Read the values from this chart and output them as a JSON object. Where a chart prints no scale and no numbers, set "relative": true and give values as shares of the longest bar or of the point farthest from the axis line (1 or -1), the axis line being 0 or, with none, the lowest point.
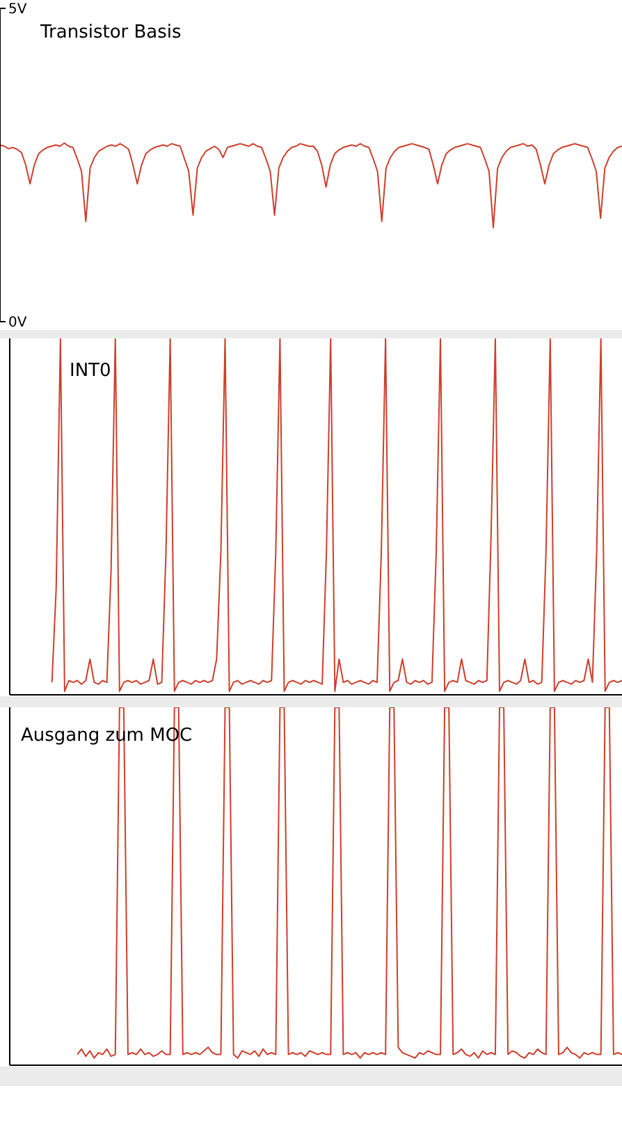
{
  "chart_data": [
    {
      "type": "line",
      "title": "Transistor Basis",
      "color": "#cc3f2b",
      "tick_labels": "y",
      "ylim": [
        0,
        5
      ],
      "yticks": [
        {
          "value": 0,
          "label": "0V"
        },
        {
          "value": 5,
          "label": "5V"
        }
      ],
      "categories": [
        null,
        null,
        null,
        null,
        null,
        null,
        null,
        null,
        null,
        null,
        null,
        null,
        null,
        null,
        null,
        null,
        null,
        null,
        null,
        null,
        null,
        null,
        null,
        null,
        null,
        null,
        null,
        null,
        null,
        null,
        null,
        null,
        null,
        null,
        null,
        null,
        null,
        null,
        null,
        null,
        null,
        null,
        null,
        null,
        null,
        null,
        null,
        null,
        null,
        null,
        null,
        null,
        null,
        null,
        null,
        null,
        null,
        null,
        null,
        null,
        null,
        null,
        null,
        null,
        null,
        null,
        null,
        null,
        null,
        null,
        null,
        null,
        null,
        null,
        null,
        null,
        null,
        null,
        null,
        null,
        null,
        null,
        null,
        null,
        null,
        null,
        null,
        null,
        null,
        null,
        null,
        null,
        null,
        null,
        null,
        null,
        null,
        null,
        null,
        null,
        null,
        null,
        null,
        null,
        null,
        null,
        null,
        null,
        null,
        null,
        null,
        null,
        null,
        null,
        null,
        null,
        null,
        null,
        null,
        null,
        null,
        null,
        null,
        null,
        null,
        null,
        null,
        null,
        null,
        null,
        null,
        null,
        null,
        null,
        null,
        null,
        null,
        null,
        null,
        null,
        null,
        null,
        null,
        null,
        null,
        null
      ],
      "values": [
        2.82,
        2.8,
        2.76,
        2.78,
        2.75,
        2.7,
        2.5,
        2.2,
        2.5,
        2.68,
        2.74,
        2.78,
        2.8,
        2.82,
        2.8,
        2.85,
        2.8,
        2.78,
        2.6,
        2.4,
        1.6,
        2.45,
        2.62,
        2.72,
        2.76,
        2.8,
        2.82,
        2.8,
        2.84,
        2.8,
        2.75,
        2.5,
        2.2,
        2.5,
        2.68,
        2.74,
        2.78,
        2.8,
        2.82,
        2.8,
        2.84,
        2.82,
        2.8,
        2.6,
        2.4,
        1.7,
        2.45,
        2.62,
        2.72,
        2.76,
        2.8,
        2.75,
        2.62,
        2.78,
        2.8,
        2.82,
        2.84,
        2.82,
        2.8,
        2.84,
        2.8,
        2.78,
        2.6,
        2.4,
        1.7,
        2.45,
        2.62,
        2.72,
        2.78,
        2.8,
        2.84,
        2.82,
        2.8,
        2.8,
        2.72,
        2.5,
        2.15,
        2.5,
        2.68,
        2.74,
        2.78,
        2.8,
        2.82,
        2.8,
        2.84,
        2.8,
        2.78,
        2.6,
        2.4,
        1.6,
        2.45,
        2.62,
        2.72,
        2.78,
        2.8,
        2.82,
        2.84,
        2.82,
        2.8,
        2.78,
        2.75,
        2.5,
        2.2,
        2.5,
        2.68,
        2.74,
        2.78,
        2.8,
        2.82,
        2.84,
        2.82,
        2.8,
        2.78,
        2.6,
        2.4,
        1.5,
        2.45,
        2.62,
        2.72,
        2.78,
        2.8,
        2.82,
        2.84,
        2.8,
        2.82,
        2.75,
        2.5,
        2.2,
        2.5,
        2.68,
        2.74,
        2.78,
        2.8,
        2.82,
        2.84,
        2.82,
        2.8,
        2.78,
        2.6,
        2.4,
        1.65,
        2.45,
        2.62,
        2.72,
        2.78,
        2.8
      ]
    },
    {
      "type": "line",
      "title": "INT0",
      "color": "#cc3f2b",
      "relative": true,
      "categories": [
        null,
        null,
        null,
        null,
        null,
        null,
        null,
        null,
        null,
        null,
        null,
        null,
        null,
        null,
        null,
        null,
        null,
        null,
        null,
        null,
        null,
        null,
        null,
        null,
        null,
        null,
        null,
        null,
        null,
        null,
        null,
        null,
        null,
        null,
        null,
        null,
        null,
        null,
        null,
        null,
        null,
        null,
        null,
        null,
        null,
        null,
        null,
        null,
        null,
        null,
        null,
        null,
        null,
        null,
        null,
        null,
        null,
        null,
        null,
        null,
        null,
        null,
        null,
        null,
        null,
        null,
        null,
        null,
        null,
        null,
        null,
        null,
        null,
        null,
        null,
        null,
        null,
        null,
        null,
        null,
        null,
        null,
        null,
        null,
        null,
        null,
        null,
        null,
        null,
        null,
        null,
        null,
        null,
        null,
        null,
        null,
        null,
        null,
        null,
        null,
        null,
        null,
        null,
        null,
        null,
        null,
        null,
        null,
        null,
        null,
        null,
        null,
        null,
        null,
        null,
        null,
        null,
        null,
        null,
        null,
        null,
        null,
        null,
        null,
        null,
        null,
        null,
        null,
        null,
        null,
        null,
        null,
        null,
        null,
        null,
        null,
        null,
        null,
        null,
        null,
        null,
        null,
        null,
        null,
        null,
        null
      ],
      "values": [
        null,
        null,
        null,
        null,
        null,
        null,
        null,
        null,
        null,
        null,
        0.035,
        0.3,
        1,
        0.01,
        0.04,
        0.035,
        0.04,
        0.03,
        0.04,
        0.1,
        0.035,
        0.03,
        0.04,
        0.035,
        0.35,
        1,
        0.01,
        0.035,
        0.04,
        0.035,
        0.04,
        0.03,
        0.035,
        0.04,
        0.1,
        0.03,
        0.035,
        0.4,
        1,
        0.01,
        0.035,
        0.04,
        0.035,
        0.03,
        0.04,
        0.035,
        0.04,
        0.035,
        0.04,
        0.1,
        0.4,
        1,
        0.01,
        0.035,
        0.04,
        0.03,
        0.035,
        0.04,
        0.035,
        0.03,
        0.04,
        0.035,
        0.04,
        0.4,
        1,
        0.01,
        0.035,
        0.04,
        0.035,
        0.03,
        0.04,
        0.035,
        0.04,
        0.035,
        0.03,
        0.4,
        1,
        0.01,
        0.1,
        0.035,
        0.04,
        0.03,
        0.035,
        0.04,
        0.035,
        0.03,
        0.04,
        0.035,
        0.4,
        1,
        0.01,
        0.035,
        0.04,
        0.1,
        0.035,
        0.03,
        0.04,
        0.035,
        0.04,
        0.03,
        0.035,
        0.4,
        1,
        0.01,
        0.035,
        0.04,
        0.035,
        0.1,
        0.04,
        0.035,
        0.03,
        0.04,
        0.035,
        0.04,
        0.45,
        1,
        0.01,
        0.035,
        0.04,
        0.035,
        0.03,
        0.04,
        0.1,
        0.035,
        0.04,
        0.03,
        0.035,
        0.4,
        1,
        0.01,
        0.035,
        0.04,
        0.035,
        0.03,
        0.04,
        0.035,
        0.04,
        0.1,
        0.035,
        0.4,
        1,
        0.01,
        0.035,
        0.04,
        0.035,
        0.04
      ]
    },
    {
      "type": "line",
      "title": "Ausgang zum MOC",
      "color": "#cc3f2b",
      "relative": true,
      "categories": [
        null,
        null,
        null,
        null,
        null,
        null,
        null,
        null,
        null,
        null,
        null,
        null,
        null,
        null,
        null,
        null,
        null,
        null,
        null,
        null,
        null,
        null,
        null,
        null,
        null,
        null,
        null,
        null,
        null,
        null,
        null,
        null,
        null,
        null,
        null,
        null,
        null,
        null,
        null,
        null,
        null,
        null,
        null,
        null,
        null,
        null,
        null,
        null,
        null,
        null,
        null,
        null,
        null,
        null,
        null,
        null,
        null,
        null,
        null,
        null,
        null,
        null,
        null,
        null,
        null,
        null,
        null,
        null,
        null,
        null,
        null,
        null,
        null,
        null,
        null,
        null,
        null,
        null,
        null,
        null,
        null,
        null,
        null,
        null,
        null,
        null,
        null,
        null,
        null,
        null,
        null,
        null,
        null,
        null,
        null,
        null,
        null,
        null,
        null,
        null,
        null,
        null,
        null,
        null,
        null,
        null,
        null,
        null,
        null,
        null,
        null,
        null,
        null,
        null,
        null,
        null,
        null,
        null,
        null,
        null,
        null,
        null,
        null,
        null,
        null,
        null,
        null,
        null,
        null,
        null,
        null,
        null,
        null,
        null,
        null,
        null,
        null,
        null,
        null,
        null,
        null,
        null,
        null,
        null,
        null,
        null
      ],
      "values": [
        null,
        null,
        null,
        null,
        null,
        null,
        null,
        null,
        null,
        null,
        null,
        null,
        null,
        null,
        null,
        null,
        0.03,
        0.045,
        0.025,
        0.04,
        0.02,
        0.035,
        0.03,
        0.045,
        0.025,
        0.03,
        1,
        1,
        0.03,
        0.035,
        0.03,
        0.045,
        0.03,
        0.035,
        0.025,
        0.03,
        0.04,
        0.03,
        0.03,
        1,
        1,
        0.03,
        0.035,
        0.03,
        0.035,
        0.03,
        0.04,
        0.05,
        0.035,
        0.03,
        0.03,
        1,
        1,
        0.03,
        0.02,
        0.04,
        0.035,
        0.03,
        0.04,
        0.025,
        0.045,
        0.03,
        0.035,
        0.03,
        1,
        1,
        0.03,
        0.035,
        0.03,
        0.035,
        0.025,
        0.04,
        0.035,
        0.03,
        0.035,
        0.03,
        0.03,
        1,
        1,
        0.03,
        0.035,
        0.03,
        0.035,
        0.02,
        0.035,
        0.03,
        0.035,
        0.03,
        0.035,
        0.03,
        1,
        1,
        0.05,
        0.035,
        0.03,
        0.025,
        0.02,
        0.035,
        0.03,
        0.04,
        0.035,
        0.03,
        0.03,
        1,
        1,
        0.03,
        0.035,
        0.045,
        0.03,
        0.025,
        0.035,
        0.02,
        0.04,
        0.03,
        0.035,
        0.03,
        1,
        1,
        0.03,
        0.04,
        0.035,
        0.025,
        0.02,
        0.035,
        0.03,
        0.045,
        0.035,
        0.03,
        1,
        1,
        0.03,
        0.035,
        0.05,
        0.035,
        0.03,
        0.02,
        0.035,
        0.03,
        0.035,
        0.03,
        0.03,
        1,
        1,
        0.03,
        0.035,
        0.03
      ]
    }
  ]
}
